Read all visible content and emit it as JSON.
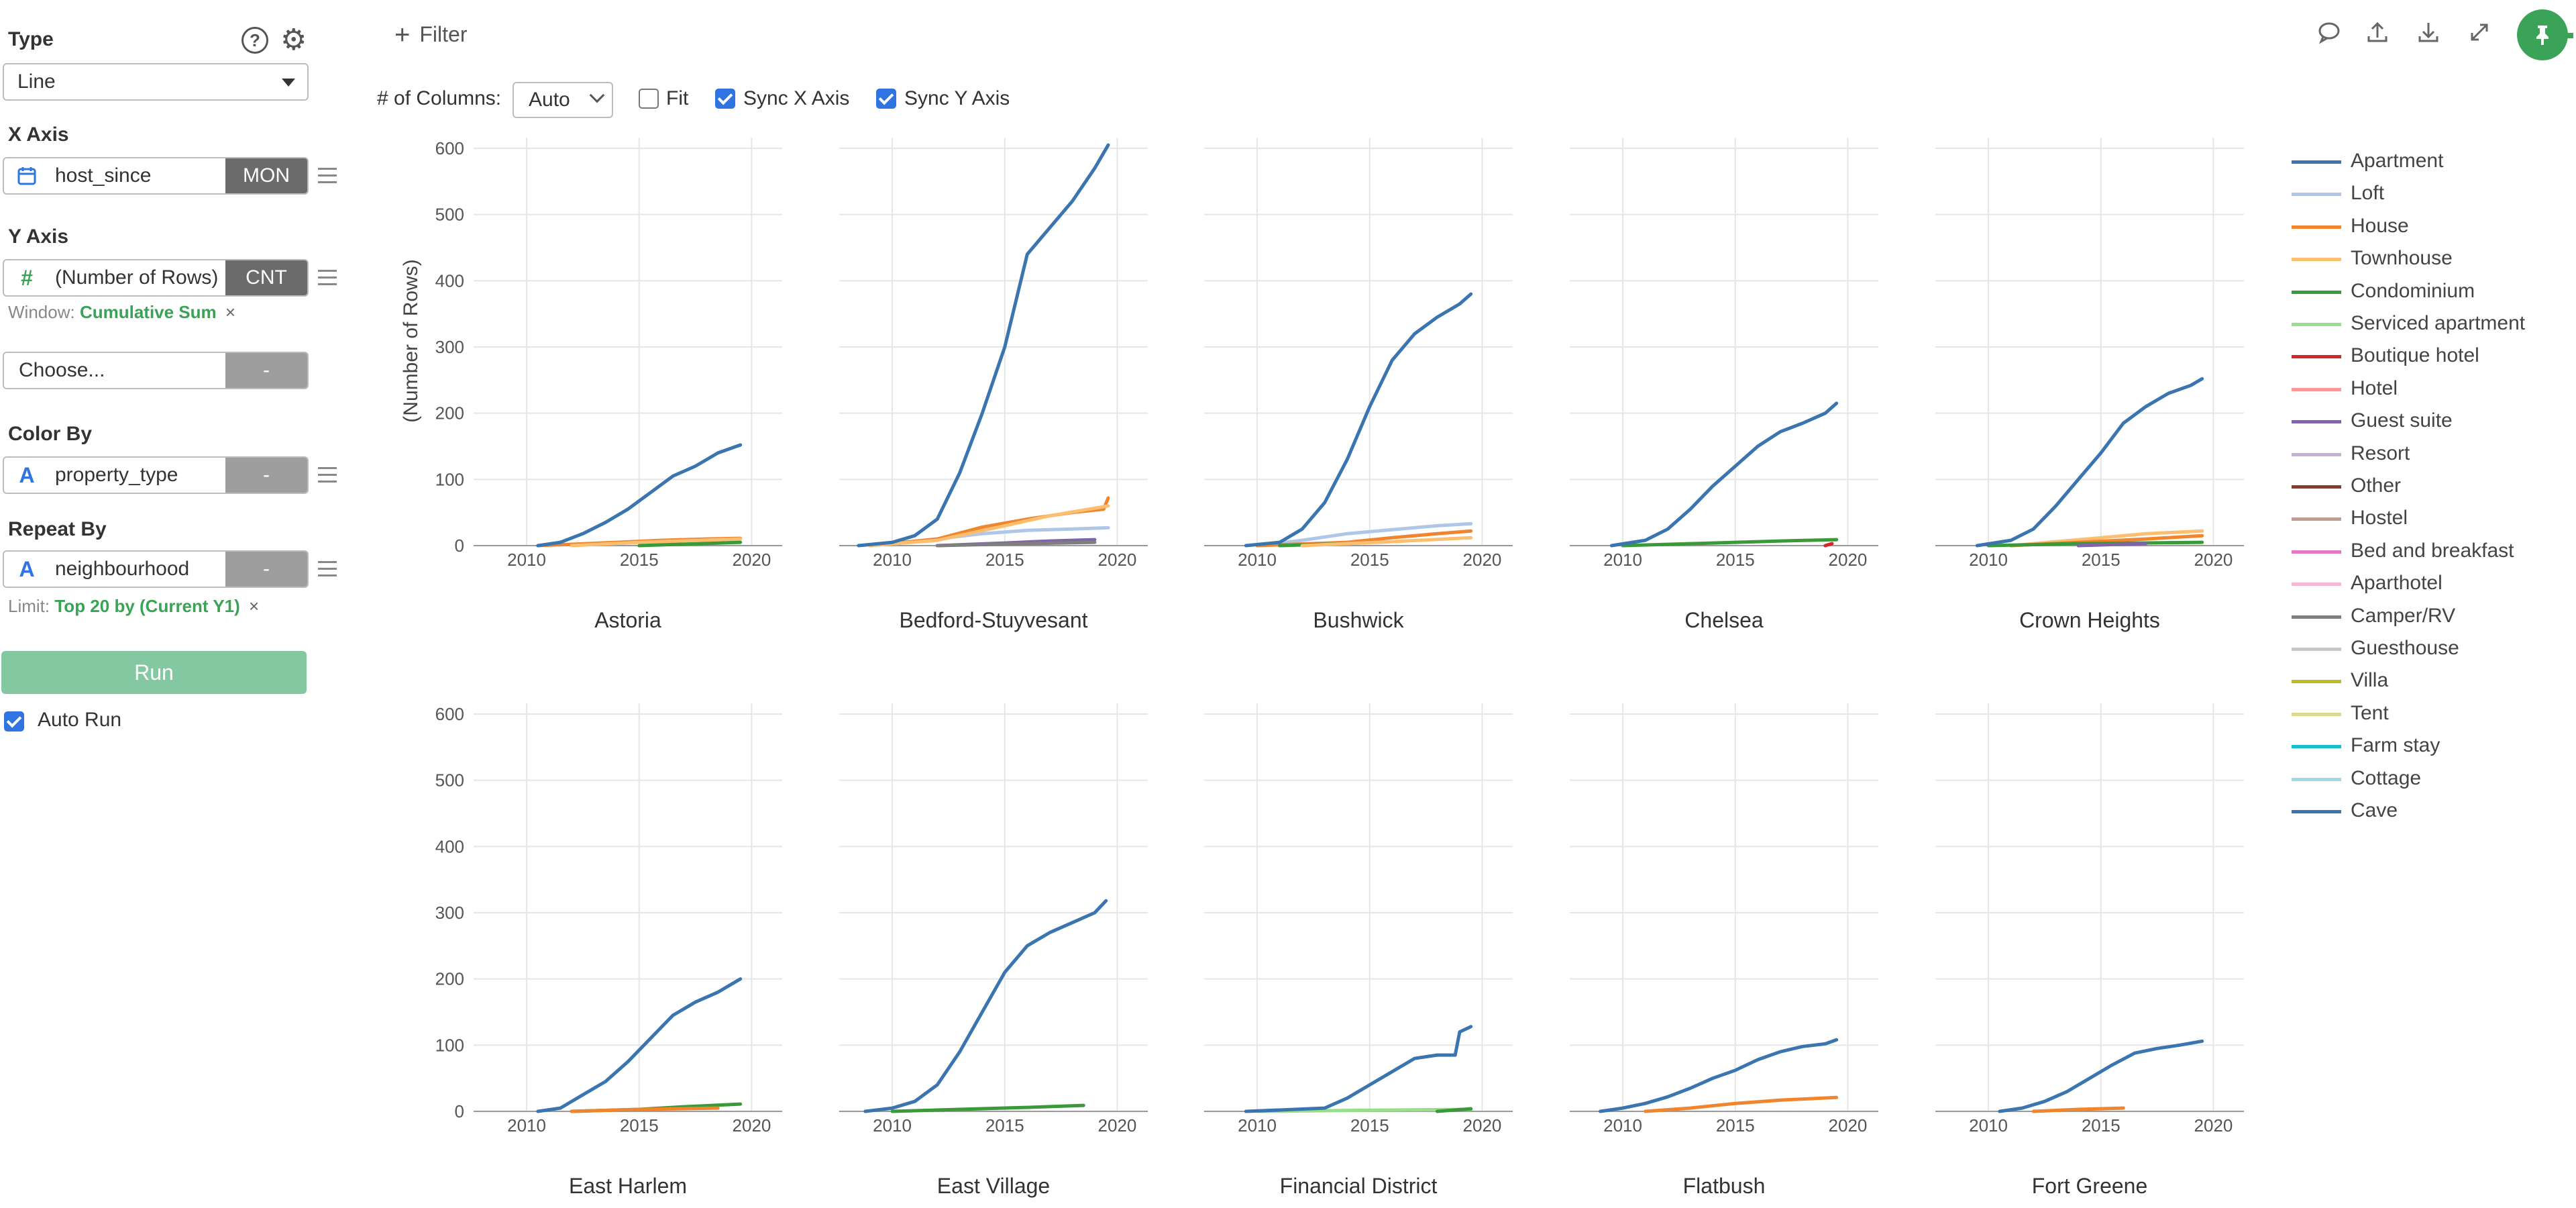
{
  "sidebar": {
    "type_label": "Type",
    "help_icon": "?",
    "type_value": "Line",
    "x_axis_label": "X Axis",
    "x_field": "host_since",
    "x_agg": "MON",
    "y_axis_label": "Y Axis",
    "y_field": "(Number of Rows)",
    "y_agg": "CNT",
    "window_prefix": "Window:",
    "window_value": "Cumulative Sum",
    "choose_placeholder": "Choose...",
    "choose_agg": "-",
    "color_by_label": "Color By",
    "color_field": "property_type",
    "color_agg": "-",
    "repeat_by_label": "Repeat By",
    "repeat_field": "neighbourhood",
    "repeat_agg": "-",
    "limit_prefix": "Limit:",
    "limit_value": "Top 20 by (Current Y1)",
    "remove_icon": "×",
    "run_label": "Run",
    "auto_run_label": "Auto Run",
    "auto_run_checked": true
  },
  "toolbar": {
    "filter_label": "Filter",
    "columns_label": "# of Columns:",
    "columns_value": "Auto",
    "fit_label": "Fit",
    "fit_checked": false,
    "sync_x_label": "Sync X Axis",
    "sync_x_checked": true,
    "sync_y_label": "Sync Y Axis",
    "sync_y_checked": true,
    "icons": [
      "comment-icon",
      "upload-icon",
      "download-icon",
      "expand-icon",
      "pin-icon"
    ],
    "accent_color": "#3aa357"
  },
  "chart_data": {
    "type": "line",
    "ylabel": "(Number of Rows)",
    "xlabel": "",
    "xlim": [
      2008,
      2021
    ],
    "ylim": [
      0,
      600
    ],
    "x_ticks": [
      "2010",
      "2015",
      "2020"
    ],
    "y_ticks": [
      "0",
      "100",
      "200",
      "300",
      "400",
      "500",
      "600"
    ],
    "grid": true,
    "legend_position": "right",
    "legend": [
      {
        "name": "Apartment",
        "color": "#3a75b0"
      },
      {
        "name": "Loft",
        "color": "#aec7e8"
      },
      {
        "name": "House",
        "color": "#f0852d"
      },
      {
        "name": "Townhouse",
        "color": "#fdbf6f"
      },
      {
        "name": "Condominium",
        "color": "#3a9a3a"
      },
      {
        "name": "Serviced apartment",
        "color": "#98df8a"
      },
      {
        "name": "Boutique hotel",
        "color": "#d62728"
      },
      {
        "name": "Hotel",
        "color": "#ff9896"
      },
      {
        "name": "Guest suite",
        "color": "#8064a8"
      },
      {
        "name": "Resort",
        "color": "#c5b0d5"
      },
      {
        "name": "Other",
        "color": "#8c3b2b"
      },
      {
        "name": "Hostel",
        "color": "#c49c94"
      },
      {
        "name": "Bed and breakfast",
        "color": "#e377c2"
      },
      {
        "name": "Aparthotel",
        "color": "#f7b6d2"
      },
      {
        "name": "Camper/RV",
        "color": "#7f7f7f"
      },
      {
        "name": "Guesthouse",
        "color": "#c7c7c7"
      },
      {
        "name": "Villa",
        "color": "#bcbd22"
      },
      {
        "name": "Tent",
        "color": "#dbdb8d"
      },
      {
        "name": "Farm stay",
        "color": "#17becf"
      },
      {
        "name": "Cottage",
        "color": "#9edae5"
      },
      {
        "name": "Cave",
        "color": "#3a75b0"
      }
    ],
    "facets": [
      {
        "title": "Astoria",
        "series": [
          {
            "name": "Apartment",
            "x": [
              2010.5,
              2011.5,
              2012.5,
              2013.5,
              2014.5,
              2015.5,
              2016.5,
              2017.5,
              2018.5,
              2019.5
            ],
            "y": [
              0,
              5,
              18,
              35,
              55,
              80,
              105,
              120,
              140,
              152
            ]
          },
          {
            "name": "House",
            "x": [
              2010.5,
              2012,
              2014,
              2016,
              2018,
              2019.5
            ],
            "y": [
              0,
              2,
              5,
              8,
              10,
              11
            ]
          },
          {
            "name": "Townhouse",
            "x": [
              2012,
              2015,
              2019.5
            ],
            "y": [
              0,
              5,
              10
            ]
          },
          {
            "name": "Condominium",
            "x": [
              2015,
              2019.5
            ],
            "y": [
              0,
              5
            ]
          }
        ]
      },
      {
        "title": "Bedford-Stuyvesant",
        "series": [
          {
            "name": "Apartment",
            "x": [
              2008.5,
              2010,
              2011,
              2012,
              2013,
              2014,
              2015,
              2016,
              2017,
              2018,
              2019,
              2019.6
            ],
            "y": [
              0,
              5,
              15,
              40,
              110,
              200,
              300,
              440,
              480,
              520,
              570,
              605
            ]
          },
          {
            "name": "Loft",
            "x": [
              2009,
              2012,
              2014,
              2016,
              2018,
              2019.6
            ],
            "y": [
              0,
              10,
              18,
              23,
              25,
              27
            ]
          },
          {
            "name": "House",
            "x": [
              2009,
              2012,
              2014,
              2016,
              2018,
              2019.4,
              2019.6
            ],
            "y": [
              0,
              10,
              28,
              40,
              50,
              55,
              72
            ]
          },
          {
            "name": "Townhouse",
            "x": [
              2009,
              2012,
              2015,
              2017,
              2019.6
            ],
            "y": [
              0,
              8,
              30,
              45,
              60
            ]
          },
          {
            "name": "Guest suite",
            "x": [
              2012,
              2015,
              2017,
              2019
            ],
            "y": [
              0,
              4,
              7,
              9
            ]
          },
          {
            "name": "Camper/RV",
            "x": [
              2012,
              2016,
              2019
            ],
            "y": [
              0,
              3,
              5
            ]
          }
        ]
      },
      {
        "title": "Bushwick",
        "series": [
          {
            "name": "Apartment",
            "x": [
              2009.5,
              2011,
              2012,
              2013,
              2014,
              2015,
              2016,
              2017,
              2018,
              2019,
              2019.5
            ],
            "y": [
              0,
              5,
              25,
              65,
              130,
              210,
              280,
              320,
              345,
              365,
              380
            ]
          },
          {
            "name": "Loft",
            "x": [
              2010,
              2012,
              2014,
              2016,
              2018,
              2019.5
            ],
            "y": [
              0,
              8,
              18,
              24,
              30,
              33
            ]
          },
          {
            "name": "House",
            "x": [
              2010,
              2014,
              2016,
              2018,
              2019.5
            ],
            "y": [
              0,
              5,
              12,
              18,
              22
            ]
          },
          {
            "name": "Condominium",
            "x": [
              2011,
              2013,
              2014
            ],
            "y": [
              0,
              2,
              3
            ]
          },
          {
            "name": "Townhouse",
            "x": [
              2012,
              2016,
              2019.5
            ],
            "y": [
              0,
              6,
              12
            ]
          }
        ]
      },
      {
        "title": "Chelsea",
        "series": [
          {
            "name": "Apartment",
            "x": [
              2009.5,
              2011,
              2012,
              2013,
              2014,
              2015,
              2016,
              2017,
              2018,
              2019,
              2019.5
            ],
            "y": [
              0,
              8,
              25,
              55,
              90,
              120,
              150,
              172,
              185,
              200,
              215
            ]
          },
          {
            "name": "Condominium",
            "x": [
              2010,
              2014,
              2017,
              2019.5
            ],
            "y": [
              0,
              4,
              7,
              9
            ]
          },
          {
            "name": "Boutique hotel",
            "x": [
              2019,
              2019.3
            ],
            "y": [
              0,
              3
            ]
          }
        ]
      },
      {
        "title": "Crown Heights",
        "series": [
          {
            "name": "Apartment",
            "x": [
              2009.5,
              2011,
              2012,
              2013,
              2014,
              2015,
              2016,
              2017,
              2018,
              2019,
              2019.5
            ],
            "y": [
              0,
              8,
              25,
              60,
              100,
              140,
              185,
              210,
              230,
              242,
              252
            ]
          },
          {
            "name": "Townhouse",
            "x": [
              2011,
              2013,
              2015,
              2017,
              2019.5
            ],
            "y": [
              0,
              6,
              12,
              18,
              22
            ]
          },
          {
            "name": "House",
            "x": [
              2011,
              2014,
              2017,
              2019.5
            ],
            "y": [
              0,
              5,
              10,
              15
            ]
          },
          {
            "name": "Condominium",
            "x": [
              2010,
              2014,
              2019.5
            ],
            "y": [
              0,
              3,
              5
            ]
          },
          {
            "name": "Guest suite",
            "x": [
              2014,
              2017
            ],
            "y": [
              0,
              3
            ]
          }
        ]
      },
      {
        "title": "East Harlem",
        "series": [
          {
            "name": "Apartment",
            "x": [
              2010.5,
              2011.5,
              2012.5,
              2013.5,
              2014.5,
              2015.5,
              2016.5,
              2017.5,
              2018.5,
              2019.5
            ],
            "y": [
              0,
              5,
              25,
              45,
              75,
              110,
              145,
              165,
              180,
              200
            ]
          },
          {
            "name": "Condominium",
            "x": [
              2012,
              2015,
              2017,
              2019.5
            ],
            "y": [
              0,
              3,
              7,
              11
            ]
          },
          {
            "name": "House",
            "x": [
              2012,
              2015,
              2018.5
            ],
            "y": [
              0,
              3,
              5
            ]
          }
        ]
      },
      {
        "title": "East Village",
        "series": [
          {
            "name": "Apartment",
            "x": [
              2008.8,
              2010,
              2011,
              2012,
              2013,
              2014,
              2015,
              2016,
              2017,
              2018,
              2019,
              2019.5
            ],
            "y": [
              0,
              5,
              15,
              40,
              90,
              150,
              210,
              250,
              270,
              285,
              300,
              318
            ]
          },
          {
            "name": "Condominium",
            "x": [
              2010,
              2013,
              2016,
              2018.5
            ],
            "y": [
              0,
              3,
              6,
              9
            ]
          }
        ]
      },
      {
        "title": "Financial District",
        "series": [
          {
            "name": "Apartment",
            "x": [
              2009.5,
              2011,
              2013,
              2014,
              2015,
              2016,
              2017,
              2018,
              2018.8,
              2019,
              2019.5
            ],
            "y": [
              0,
              2,
              5,
              20,
              40,
              60,
              80,
              85,
              85,
              120,
              128
            ]
          },
          {
            "name": "Serviced apartment",
            "x": [
              2010,
              2013,
              2016,
              2019.5
            ],
            "y": [
              0,
              1,
              2,
              3
            ]
          },
          {
            "name": "Condominium",
            "x": [
              2018,
              2019.5
            ],
            "y": [
              0,
              4
            ]
          }
        ]
      },
      {
        "title": "Flatbush",
        "series": [
          {
            "name": "Apartment",
            "x": [
              2009,
              2010,
              2011,
              2012,
              2013,
              2014,
              2015,
              2016,
              2017,
              2018,
              2019,
              2019.5
            ],
            "y": [
              0,
              5,
              12,
              22,
              35,
              50,
              62,
              78,
              90,
              98,
              102,
              108
            ]
          },
          {
            "name": "House",
            "x": [
              2011,
              2013,
              2015,
              2017,
              2019.5
            ],
            "y": [
              0,
              5,
              12,
              17,
              21
            ]
          }
        ]
      },
      {
        "title": "Fort Greene",
        "series": [
          {
            "name": "Apartment",
            "x": [
              2010.5,
              2011.5,
              2012.5,
              2013.5,
              2014.5,
              2015.5,
              2016.5,
              2017.5,
              2018.5,
              2019.5
            ],
            "y": [
              0,
              5,
              15,
              30,
              50,
              70,
              88,
              95,
              100,
              106
            ]
          },
          {
            "name": "House",
            "x": [
              2012,
              2014,
              2016
            ],
            "y": [
              0,
              3,
              5
            ]
          }
        ]
      }
    ]
  }
}
